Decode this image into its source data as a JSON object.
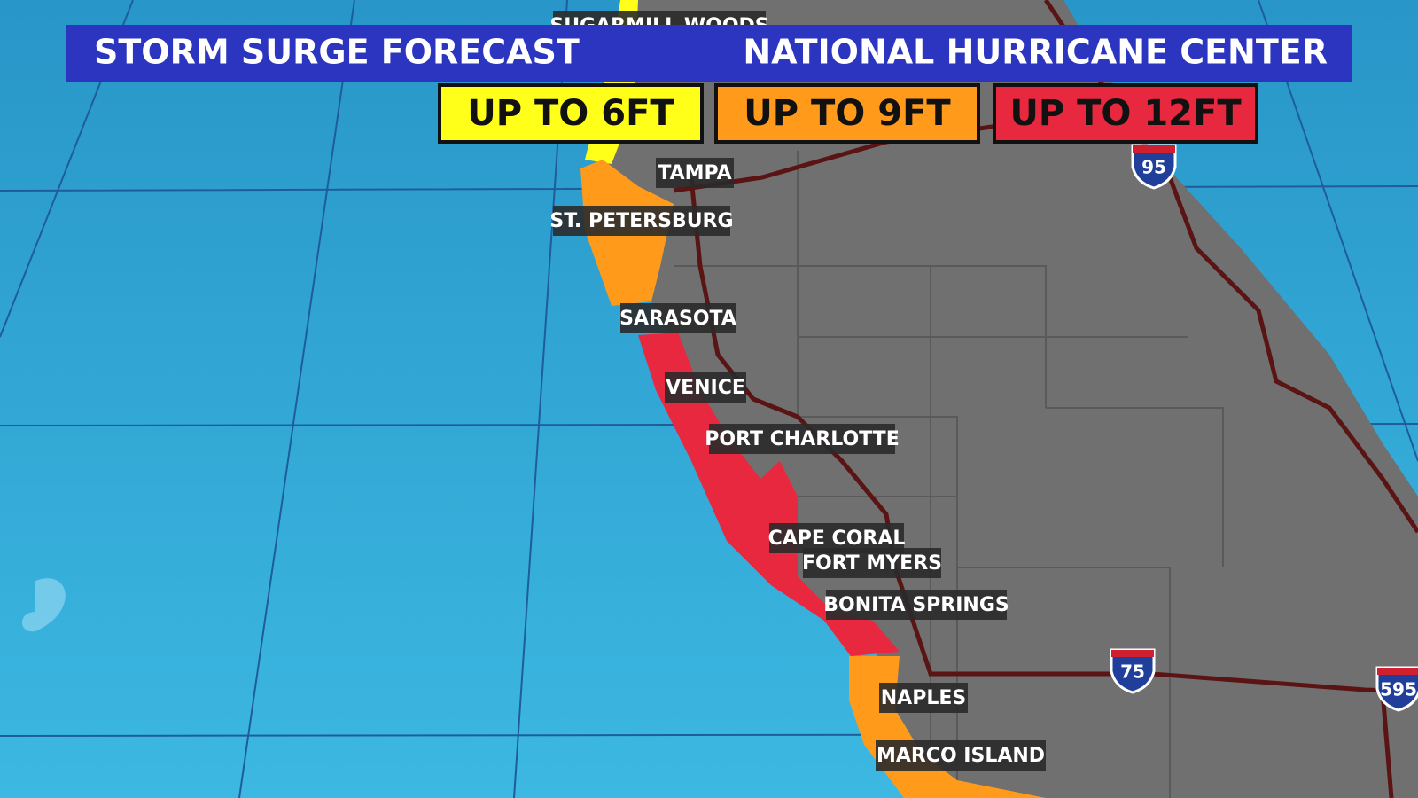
{
  "header": {
    "title": "STORM SURGE FORECAST",
    "source": "NATIONAL HURRICANE CENTER"
  },
  "legend": [
    {
      "label": "UP TO 6FT",
      "color": "#ffff1a"
    },
    {
      "label": "UP TO 9FT",
      "color": "#ff9a1a"
    },
    {
      "label": "UP TO 12FT",
      "color": "#e8283f"
    }
  ],
  "cities": [
    "SUGARMILL WOODS",
    "TAMPA",
    "ST. PETERSBURG",
    "SARASOTA",
    "VENICE",
    "PORT CHARLOTTE",
    "CAPE CORAL",
    "FORT MYERS",
    "BONITA SPRINGS",
    "NAPLES",
    "MARCO ISLAND"
  ],
  "interstates": [
    "95",
    "75",
    "595"
  ]
}
